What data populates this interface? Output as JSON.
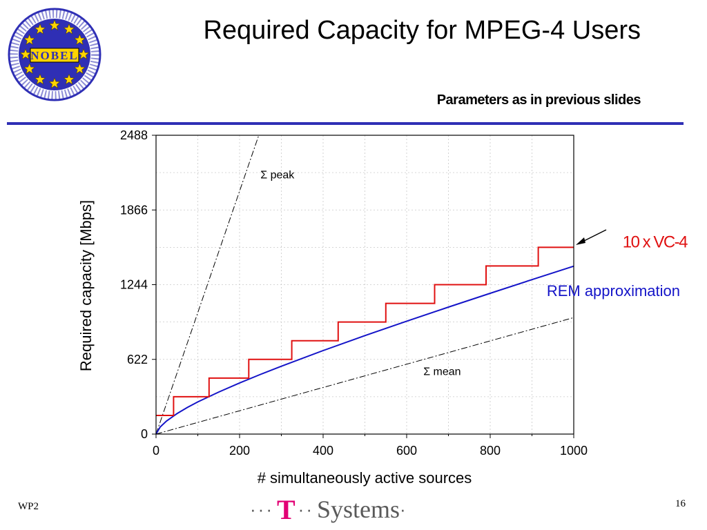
{
  "slide": {
    "title": "Required Capacity for MPEG-4 Users",
    "subtitle": "Parameters as in previous slides",
    "footer_left": "WP2",
    "page_number": "16",
    "brand": {
      "dots_left": "···",
      "t": "T",
      "dots_mid": "··",
      "name": "Systems",
      "dot_right": "·"
    },
    "logo": {
      "text": "NOBEL",
      "icon": "nobel-logo-icon",
      "ring_text": "Next Generation Optical Networks for Broadband European Leadership",
      "colors": {
        "ring": "#2f2fb5",
        "star": "#ffd400",
        "text": "#ffffff"
      }
    },
    "colors": {
      "rule": "#2f2fb5",
      "brand_magenta": "#e20074",
      "brand_gray": "#5a5a5a"
    }
  },
  "chart_data": {
    "type": "line",
    "xlabel": "# simultaneously active sources",
    "ylabel": "Required capacity [Mbps]",
    "xlim": [
      0,
      1000
    ],
    "ylim": [
      0,
      2488
    ],
    "x_ticks": [
      0,
      200,
      400,
      600,
      800,
      1000
    ],
    "y_ticks": [
      0,
      622,
      1244,
      1866,
      2488
    ],
    "grid": true,
    "series": [
      {
        "name": "Σ peak",
        "style": "dash-dot",
        "color": "#000000",
        "x": [
          0,
          246
        ],
        "y": [
          0,
          2488
        ]
      },
      {
        "name": "Σ mean",
        "style": "dash-dot",
        "color": "#000000",
        "x": [
          0,
          1000
        ],
        "y": [
          0,
          970
        ]
      },
      {
        "name": "REM approximation",
        "style": "solid",
        "color": "#1414c8",
        "x": [
          0,
          10,
          25,
          50,
          75,
          100,
          150,
          200,
          250,
          300,
          400,
          500,
          600,
          700,
          800,
          900,
          1000
        ],
        "y": [
          0,
          60,
          108,
          170,
          222,
          268,
          350,
          426,
          497,
          565,
          695,
          820,
          940,
          1057,
          1172,
          1286,
          1398
        ]
      },
      {
        "name": "10 x VC-4",
        "style": "step",
        "color": "#e01010",
        "x": [
          0,
          42,
          42,
          127,
          127,
          222,
          222,
          325,
          325,
          436,
          436,
          550,
          550,
          667,
          667,
          790,
          790,
          915,
          915,
          1000
        ],
        "y": [
          155,
          155,
          311,
          311,
          466,
          466,
          622,
          622,
          777,
          777,
          933,
          933,
          1088,
          1088,
          1244,
          1244,
          1400,
          1400,
          1555,
          1555
        ]
      }
    ],
    "annotations": [
      {
        "text": "Σ peak",
        "x": 250,
        "y": 2130
      },
      {
        "text": "Σ mean",
        "x": 640,
        "y": 490
      },
      {
        "text": "REM approximation",
        "x": 1000,
        "y": 1150,
        "color": "#1414c8"
      },
      {
        "text": "10 x VC-4",
        "x": 1000,
        "y": 1555,
        "color": "#e01010"
      }
    ]
  }
}
